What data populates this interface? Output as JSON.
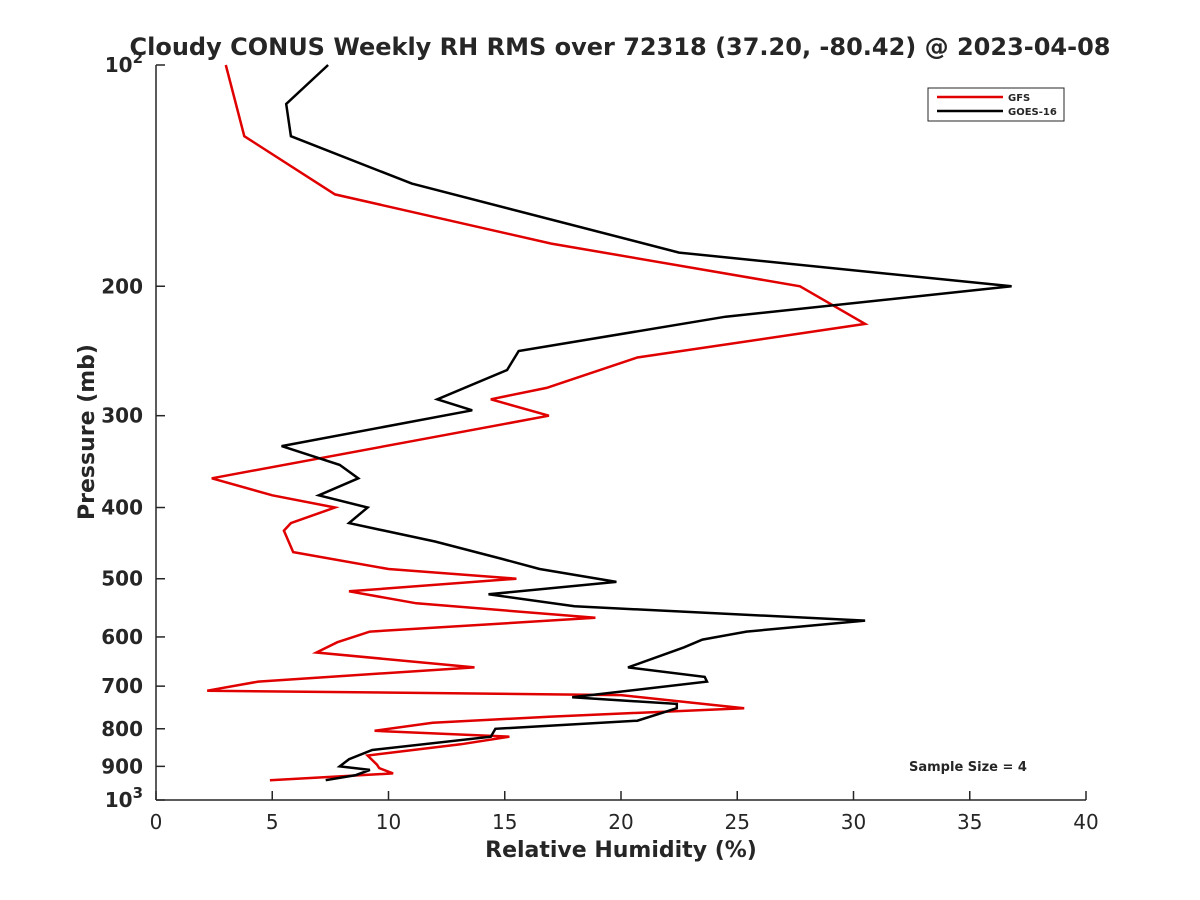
{
  "chart_data": {
    "type": "line",
    "title": "Cloudy CONUS Weekly RH RMS over 72318 (37.20, -80.42) @ 2023-04-08",
    "xlabel": "Relative Humidity (%)",
    "ylabel": "Pressure (mb)",
    "xlim": [
      0,
      40
    ],
    "ylim": [
      100,
      1000
    ],
    "yscale": "log",
    "y_reversed": true,
    "grid": false,
    "legend_position": "top-right",
    "x_ticks": [
      0,
      5,
      10,
      15,
      20,
      25,
      30,
      35,
      40
    ],
    "x_tick_labels": [
      "0",
      "5",
      "10",
      "15",
      "20",
      "25",
      "30",
      "35",
      "40"
    ],
    "y_ticks": [
      100,
      200,
      300,
      400,
      500,
      600,
      700,
      800,
      900,
      1000
    ],
    "y_tick_labels": [
      {
        "base": "10",
        "exp": "2"
      },
      {
        "text": "200"
      },
      {
        "text": "300"
      },
      {
        "text": "400"
      },
      {
        "text": "500"
      },
      {
        "text": "600"
      },
      {
        "text": "700"
      },
      {
        "text": "800"
      },
      {
        "text": "900"
      },
      {
        "base": "10",
        "exp": "3"
      }
    ],
    "annotation": "Sample Size = 4",
    "series": [
      {
        "name": "GFS",
        "color": "#e00000",
        "points": [
          [
            3.0,
            100
          ],
          [
            3.8,
            125
          ],
          [
            7.7,
            150
          ],
          [
            17,
            175
          ],
          [
            27.7,
            200
          ],
          [
            30.5,
            225
          ],
          [
            20.7,
            250
          ],
          [
            16.8,
            275
          ],
          [
            14.4,
            285
          ],
          [
            16.9,
            300
          ],
          [
            11,
            325
          ],
          [
            2.4,
            365
          ],
          [
            5.0,
            385
          ],
          [
            7.7,
            400
          ],
          [
            5.8,
            420
          ],
          [
            5.5,
            430
          ],
          [
            5.9,
            460
          ],
          [
            10,
            485
          ],
          [
            15.5,
            500
          ],
          [
            8.3,
            520
          ],
          [
            11.2,
            540
          ],
          [
            18.9,
            565
          ],
          [
            9.2,
            590
          ],
          [
            7.8,
            610
          ],
          [
            6.9,
            630
          ],
          [
            13.7,
            660
          ],
          [
            10.5,
            670
          ],
          [
            4.4,
            690
          ],
          [
            2.2,
            710
          ],
          [
            20,
            720
          ],
          [
            25.3,
            750
          ],
          [
            17,
            770
          ],
          [
            11.9,
            785
          ],
          [
            9.4,
            805
          ],
          [
            15.2,
            820
          ],
          [
            13.1,
            840
          ],
          [
            9.1,
            870
          ],
          [
            9.5,
            895
          ],
          [
            9.6,
            905
          ],
          [
            10.2,
            920
          ],
          [
            4.9,
            940
          ]
        ]
      },
      {
        "name": "GOES-16",
        "color": "#000000",
        "points": [
          [
            7.4,
            100
          ],
          [
            5.6,
            113
          ],
          [
            5.8,
            125
          ],
          [
            11.0,
            145
          ],
          [
            22.5,
            180
          ],
          [
            36.8,
            200
          ],
          [
            24.5,
            220
          ],
          [
            15.6,
            245
          ],
          [
            15.1,
            260
          ],
          [
            12.1,
            285
          ],
          [
            13.6,
            295
          ],
          [
            5.4,
            330
          ],
          [
            7.9,
            350
          ],
          [
            8.7,
            365
          ],
          [
            7.0,
            385
          ],
          [
            9.1,
            400
          ],
          [
            8.3,
            420
          ],
          [
            12.0,
            445
          ],
          [
            14.9,
            470
          ],
          [
            16.5,
            485
          ],
          [
            19.8,
            505
          ],
          [
            14.3,
            525
          ],
          [
            18.0,
            545
          ],
          [
            30.5,
            570
          ],
          [
            25.4,
            590
          ],
          [
            23.5,
            605
          ],
          [
            22.7,
            620
          ],
          [
            20.3,
            660
          ],
          [
            23.6,
            680
          ],
          [
            23.7,
            690
          ],
          [
            17.9,
            725
          ],
          [
            22.4,
            740
          ],
          [
            22.4,
            750
          ],
          [
            20.7,
            780
          ],
          [
            14.6,
            800
          ],
          [
            14.4,
            820
          ],
          [
            9.3,
            855
          ],
          [
            8.3,
            880
          ],
          [
            7.9,
            900
          ],
          [
            9.2,
            910
          ],
          [
            8.6,
            925
          ],
          [
            7.3,
            940
          ]
        ]
      }
    ]
  }
}
